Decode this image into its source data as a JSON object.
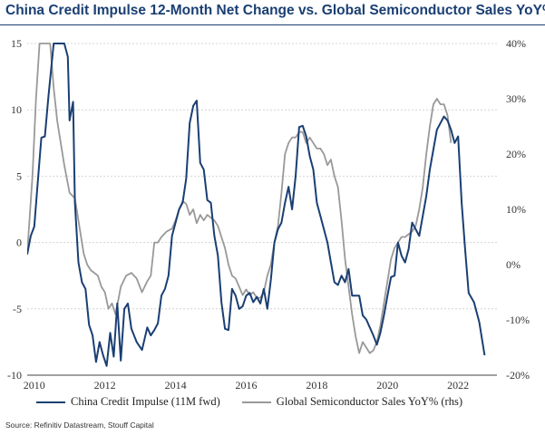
{
  "chart_data": {
    "type": "line",
    "title": "China Credit Impulse 12-Month Net Change vs. Global Semiconductor Sales YoY%",
    "source": "Source: Refinitiv Datastream, Stouff Capital",
    "x_ticks": [
      "2010",
      "2012",
      "2014",
      "2016",
      "2018",
      "2020",
      "2022"
    ],
    "xlim": [
      2009.8,
      2023.1
    ],
    "y_left": {
      "ticks": [
        "15",
        "10",
        "5",
        "0",
        "-5",
        "-10"
      ],
      "ylim": [
        -10,
        15
      ]
    },
    "y_right": {
      "ticks": [
        "40%",
        "30%",
        "20%",
        "10%",
        "0%",
        "-10%",
        "-20%"
      ],
      "ylim": [
        -20,
        40
      ]
    },
    "grid": "horizontal",
    "colors": {
      "primary": "#1a3f73",
      "secondary": "#999999",
      "grid": "#d4d4d4",
      "title": "#1a3f73"
    },
    "series": [
      {
        "name": "China Credit Impulse (11M fwd)",
        "axis": "left",
        "x": [
          2009.8,
          2009.9,
          2010.0,
          2010.1,
          2010.2,
          2010.3,
          2010.4,
          2010.55,
          2010.7,
          2010.85,
          2010.95,
          2011.0,
          2011.1,
          2011.15,
          2011.25,
          2011.35,
          2011.45,
          2011.55,
          2011.65,
          2011.75,
          2011.85,
          2011.95,
          2012.05,
          2012.15,
          2012.25,
          2012.35,
          2012.45,
          2012.55,
          2012.65,
          2012.75,
          2012.9,
          2013.05,
          2013.2,
          2013.3,
          2013.4,
          2013.5,
          2013.6,
          2013.7,
          2013.8,
          2013.9,
          2014.0,
          2014.1,
          2014.2,
          2014.3,
          2014.4,
          2014.5,
          2014.6,
          2014.7,
          2014.8,
          2014.9,
          2015.0,
          2015.1,
          2015.2,
          2015.3,
          2015.4,
          2015.5,
          2015.6,
          2015.7,
          2015.8,
          2015.9,
          2016.0,
          2016.1,
          2016.2,
          2016.3,
          2016.4,
          2016.5,
          2016.6,
          2016.7,
          2016.8,
          2016.9,
          2017.0,
          2017.1,
          2017.2,
          2017.3,
          2017.4,
          2017.5,
          2017.6,
          2017.7,
          2017.8,
          2017.9,
          2018.0,
          2018.1,
          2018.2,
          2018.3,
          2018.4,
          2018.5,
          2018.6,
          2018.7,
          2018.8,
          2018.9,
          2019.0,
          2019.2,
          2019.3,
          2019.4,
          2019.5,
          2019.6,
          2019.7,
          2019.8,
          2019.9,
          2020.0,
          2020.1,
          2020.2,
          2020.3,
          2020.4,
          2020.5,
          2020.6,
          2020.7,
          2020.8,
          2020.9,
          2021.0,
          2021.1,
          2021.2,
          2021.3,
          2021.4,
          2021.5,
          2021.6,
          2021.7,
          2021.8,
          2021.9,
          2022.0,
          2022.1,
          2022.2,
          2022.3,
          2022.45,
          2022.6,
          2022.75
        ],
        "values": [
          -0.9,
          0.5,
          1.2,
          4.6,
          7.9,
          8.0,
          11.0,
          15.0,
          15.0,
          15.0,
          14.0,
          9.2,
          10.6,
          3.0,
          -1.5,
          -3.0,
          -3.5,
          -6.2,
          -7.0,
          -9.0,
          -7.5,
          -8.5,
          -9.3,
          -6.8,
          -8.6,
          -4.6,
          -8.9,
          -5.0,
          -4.6,
          -6.5,
          -7.5,
          -8.1,
          -6.4,
          -7.0,
          -6.6,
          -6.1,
          -4.0,
          -3.5,
          -2.5,
          0.5,
          1.5,
          2.5,
          3.0,
          4.8,
          9.0,
          10.3,
          10.7,
          6.0,
          5.5,
          3.2,
          3.0,
          0.5,
          -1.0,
          -4.5,
          -6.5,
          -6.6,
          -3.5,
          -4.0,
          -5.0,
          -4.8,
          -4.0,
          -3.8,
          -4.5,
          -4.1,
          -4.6,
          -3.5,
          -5.0,
          -2.8,
          0.0,
          1.0,
          1.5,
          3.0,
          4.2,
          2.5,
          5.0,
          8.7,
          8.8,
          8.0,
          6.5,
          5.5,
          3.0,
          2.0,
          1.0,
          0.0,
          -1.5,
          -3.0,
          -3.2,
          -2.5,
          -3.0,
          -2.0,
          -4.0,
          -4.0,
          -5.5,
          -5.8,
          -6.4,
          -7.0,
          -7.7,
          -6.8,
          -5.5,
          -4.0,
          -2.6,
          -2.5,
          0.0,
          -1.0,
          -1.5,
          -0.5,
          1.5,
          1.0,
          0.5,
          2.0,
          3.5,
          5.5,
          7.0,
          8.5,
          9.0,
          9.5,
          9.2,
          8.5,
          7.5,
          8.0,
          3.0,
          -0.5,
          -3.8,
          -4.5,
          -6.0,
          -8.5
        ]
      },
      {
        "name": "Global Semiconductor Sales YoY% (rhs)",
        "axis": "right",
        "x": [
          2009.8,
          2009.95,
          2010.05,
          2010.15,
          2010.3,
          2010.45,
          2010.55,
          2010.65,
          2010.75,
          2010.85,
          2011.0,
          2011.15,
          2011.3,
          2011.4,
          2011.5,
          2011.6,
          2011.7,
          2011.8,
          2011.9,
          2012.0,
          2012.1,
          2012.2,
          2012.3,
          2012.45,
          2012.6,
          2012.75,
          2012.9,
          2013.05,
          2013.2,
          2013.3,
          2013.4,
          2013.5,
          2013.6,
          2013.75,
          2013.9,
          2014.0,
          2014.1,
          2014.2,
          2014.3,
          2014.4,
          2014.5,
          2014.6,
          2014.7,
          2014.8,
          2014.9,
          2015.0,
          2015.1,
          2015.2,
          2015.3,
          2015.4,
          2015.5,
          2015.6,
          2015.7,
          2015.8,
          2015.9,
          2016.0,
          2016.1,
          2016.2,
          2016.3,
          2016.4,
          2016.5,
          2016.6,
          2016.7,
          2016.8,
          2016.9,
          2017.0,
          2017.1,
          2017.2,
          2017.3,
          2017.4,
          2017.5,
          2017.6,
          2017.7,
          2017.8,
          2017.9,
          2018.0,
          2018.1,
          2018.2,
          2018.3,
          2018.4,
          2018.5,
          2018.6,
          2018.7,
          2018.8,
          2018.9,
          2019.0,
          2019.1,
          2019.2,
          2019.3,
          2019.4,
          2019.5,
          2019.6,
          2019.7,
          2019.8,
          2019.9,
          2020.0,
          2020.1,
          2020.2,
          2020.3,
          2020.4,
          2020.5,
          2020.6,
          2020.7,
          2020.8,
          2020.9,
          2021.0,
          2021.1,
          2021.2,
          2021.3,
          2021.4,
          2021.5,
          2021.6,
          2021.7,
          2021.8
        ],
        "values": [
          2,
          16,
          30,
          40,
          40,
          40,
          32,
          26,
          22,
          18,
          13,
          12,
          6,
          2,
          0,
          -1,
          -1.5,
          -2,
          -4,
          -5,
          -8,
          -7,
          -9,
          -4,
          -2,
          -1.5,
          -2.5,
          -5,
          -3,
          -2,
          4,
          4,
          5,
          6,
          6.5,
          8,
          10,
          11.5,
          11,
          9,
          10,
          7.5,
          9,
          8,
          9,
          8.5,
          8,
          7,
          5,
          3,
          0,
          -2,
          -2.5,
          -4,
          -5.5,
          -4.5,
          -5.5,
          -5,
          -6,
          -6,
          -5,
          -2,
          0,
          4,
          7,
          13,
          20,
          22,
          23,
          23,
          24,
          24,
          22,
          23,
          22,
          21,
          21,
          20,
          18,
          19,
          16,
          14,
          8,
          1,
          -4,
          -9,
          -13,
          -16,
          -14,
          -15,
          -16,
          -15.5,
          -14,
          -11,
          -7,
          -3,
          1,
          3,
          4,
          5,
          5,
          5.5,
          6,
          7,
          10,
          14,
          20,
          25,
          29,
          30,
          29,
          29,
          27,
          22
        ]
      }
    ]
  }
}
